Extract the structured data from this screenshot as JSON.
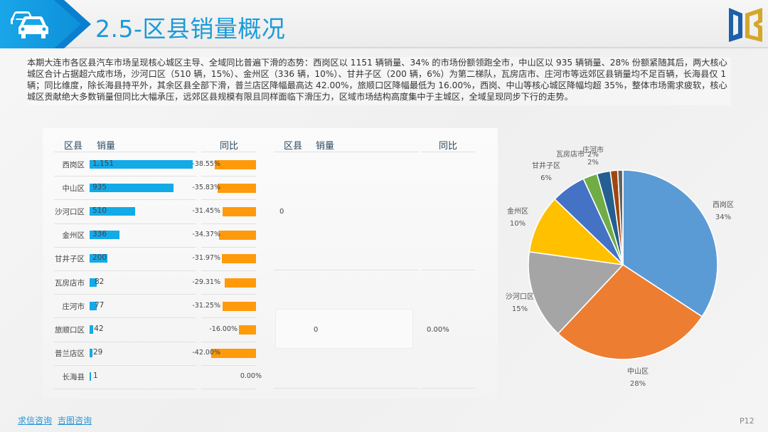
{
  "header": {
    "title": "2.5-区县销量概况",
    "icon": "car-icon",
    "logo": "db-logo"
  },
  "summary": "本期大连市各区县汽车市场呈现核心城区主导、全域同比普遍下滑的态势：西岗区以 1151 辆销量、34% 的市场份额领跑全市，中山区以 935 辆销量、28% 份额紧随其后，两大核心城区合计占据超六成市场，沙河口区（510 辆，15%）、金州区（336 辆，10%）、甘井子区（200 辆，6%）为第二梯队，瓦房店市、庄河市等远郊区县销量均不足百辆，长海县仅 1 辆；同比维度，除长海县持平外，其余区县全部下滑，普兰店区降幅最高达 42.00%，旅顺口区降幅最低为 16.00%，西岗、中山等核心城区降幅均超 35%，整体市场需求疲软，核心城区贡献绝大多数销量但同比大幅承压，远郊区县规模有限且同样面临下滑压力，区域市场结构高度集中于主城区，全域呈现同步下行的走势。",
  "table_left": {
    "headers": {
      "district": "区县",
      "sales": "销量",
      "yoy": "同比"
    },
    "rows": [
      {
        "district": "西岗区",
        "sales": "1,151",
        "sales_num": 1151,
        "yoy": "-38.55%",
        "yoy_num": 38.55
      },
      {
        "district": "中山区",
        "sales": "935",
        "sales_num": 935,
        "yoy": "-35.83%",
        "yoy_num": 35.83
      },
      {
        "district": "沙河口区",
        "sales": "510",
        "sales_num": 510,
        "yoy": "-31.45%",
        "yoy_num": 31.45
      },
      {
        "district": "金州区",
        "sales": "336",
        "sales_num": 336,
        "yoy": "-34.37%",
        "yoy_num": 34.37
      },
      {
        "district": "甘井子区",
        "sales": "200",
        "sales_num": 200,
        "yoy": "-31.97%",
        "yoy_num": 31.97
      },
      {
        "district": "瓦房店市",
        "sales": "82",
        "sales_num": 82,
        "yoy": "-29.31%",
        "yoy_num": 29.31
      },
      {
        "district": "庄河市",
        "sales": "77",
        "sales_num": 77,
        "yoy": "-31.25%",
        "yoy_num": 31.25
      },
      {
        "district": "旅顺口区",
        "sales": "42",
        "sales_num": 42,
        "yoy": "-16.00%",
        "yoy_num": 16.0
      },
      {
        "district": "普兰店区",
        "sales": "29",
        "sales_num": 29,
        "yoy": "-42.00%",
        "yoy_num": 42.0
      },
      {
        "district": "长海县",
        "sales": "1",
        "sales_num": 1,
        "yoy": "0.00%",
        "yoy_num": 0
      }
    ]
  },
  "table_right": {
    "headers": {
      "district": "区县",
      "sales": "销量",
      "yoy": "同比"
    },
    "top_value": "0",
    "row_sales": "0",
    "row_yoy": "0.00%"
  },
  "colors": {
    "sales_bar": "#13aae8",
    "yoy_bar": "#ff9a0b",
    "title": "#1a9ad9"
  },
  "chart_data": {
    "type": "pie",
    "title": "",
    "categories": [
      "西岗区",
      "中山区",
      "沙河口区",
      "金州区",
      "甘井子区",
      "瓦房店市",
      "庄河市",
      "旅顺口区",
      "普兰店区",
      "长海县"
    ],
    "values": [
      1151,
      935,
      510,
      336,
      200,
      82,
      77,
      42,
      29,
      1
    ],
    "percent_labels": [
      "34%",
      "28%",
      "15%",
      "10%",
      "6%",
      "2%",
      "2%",
      "",
      "",
      ""
    ],
    "colors": [
      "#5b9bd5",
      "#ed7d31",
      "#a5a5a5",
      "#ffc000",
      "#4472c4",
      "#70ad47",
      "#255e91",
      "#9e480e",
      "#636363",
      "#997300"
    ],
    "start_angle": "12 o'clock, clockwise",
    "legend": "none (data labels outside)"
  },
  "pie_labels": [
    {
      "name": "西岗区",
      "pct": "34%"
    },
    {
      "name": "中山区",
      "pct": "28%"
    },
    {
      "name": "沙河口区",
      "pct": "15%"
    },
    {
      "name": "金州区",
      "pct": "10%"
    },
    {
      "name": "甘井子区",
      "pct": "6%"
    },
    {
      "name": "瓦房店市",
      "pct": "2%"
    },
    {
      "name": "庄河市",
      "pct": "2%"
    }
  ],
  "footer": {
    "link1": "求信咨询",
    "link2": "吉图咨询",
    "page": "P12"
  }
}
